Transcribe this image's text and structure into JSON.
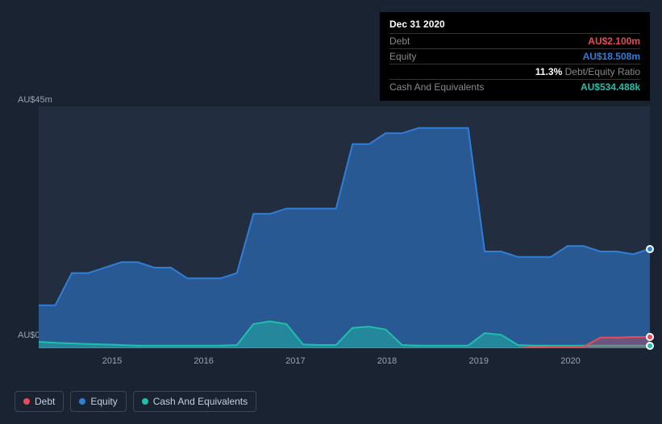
{
  "tooltip": {
    "date": "Dec 31 2020",
    "rows": [
      {
        "label": "Debt",
        "value": "AU$2.100m",
        "color": "#e84b5a"
      },
      {
        "label": "Equity",
        "value": "AU$18.508m",
        "color": "#2f7ed8"
      },
      {
        "label": "",
        "value": "11.3%",
        "suffix": "Debt/Equity Ratio",
        "color": "#ffffff"
      },
      {
        "label": "Cash And Equivalents",
        "value": "AU$534.488k",
        "color": "#1fbfa9"
      }
    ]
  },
  "chart": {
    "background_color": "#222e3f",
    "y_axis": {
      "min_label": "AU$0",
      "max_label": "AU$45m",
      "max_value": 45
    },
    "x_axis": {
      "ticks": [
        "2015",
        "2016",
        "2017",
        "2018",
        "2019",
        "2020"
      ],
      "tick_positions": [
        0.12,
        0.27,
        0.42,
        0.57,
        0.72,
        0.87
      ]
    },
    "series": [
      {
        "name": "Equity",
        "color": "#2f7ed8",
        "fill_opacity": 0.55,
        "data": [
          8,
          8,
          14,
          14,
          15,
          16,
          16,
          15,
          15,
          13,
          13,
          13,
          14,
          25,
          25,
          26,
          26,
          26,
          26,
          38,
          38,
          40,
          40,
          41,
          41,
          41,
          41,
          18,
          18,
          17,
          17,
          17,
          19,
          19,
          18,
          18,
          17.5,
          18.5
        ]
      },
      {
        "name": "Cash And Equivalents",
        "color": "#1fbfa9",
        "fill_opacity": 0.45,
        "data": [
          1.2,
          1,
          0.9,
          0.8,
          0.7,
          0.6,
          0.5,
          0.5,
          0.5,
          0.5,
          0.5,
          0.5,
          0.6,
          4.5,
          5,
          4.5,
          0.7,
          0.6,
          0.6,
          3.8,
          4,
          3.5,
          0.6,
          0.5,
          0.5,
          0.5,
          0.5,
          2.8,
          2.5,
          0.6,
          0.5,
          0.5,
          0.5,
          0.5,
          0.5,
          0.5,
          0.5,
          0.5
        ]
      },
      {
        "name": "Debt",
        "color": "#e84b5a",
        "fill_opacity": 0.35,
        "data": [
          0,
          0,
          0,
          0,
          0,
          0,
          0,
          0,
          0,
          0,
          0,
          0,
          0,
          0,
          0,
          0,
          0,
          0,
          0,
          0,
          0,
          0,
          0,
          0,
          0,
          0,
          0,
          0,
          0,
          0,
          0.2,
          0.3,
          0.3,
          0.3,
          2,
          2,
          2.1,
          2.1
        ]
      }
    ],
    "markers": [
      {
        "x": 1.0,
        "color": "#e84b5a",
        "value": 2.1
      },
      {
        "x": 1.0,
        "color": "#2f7ed8",
        "value": 18.5
      },
      {
        "x": 1.0,
        "color": "#1fbfa9",
        "value": 0.5
      }
    ]
  },
  "legend": [
    {
      "label": "Debt",
      "color": "#e84b5a"
    },
    {
      "label": "Equity",
      "color": "#2f7ed8"
    },
    {
      "label": "Cash And Equivalents",
      "color": "#1fbfa9"
    }
  ]
}
